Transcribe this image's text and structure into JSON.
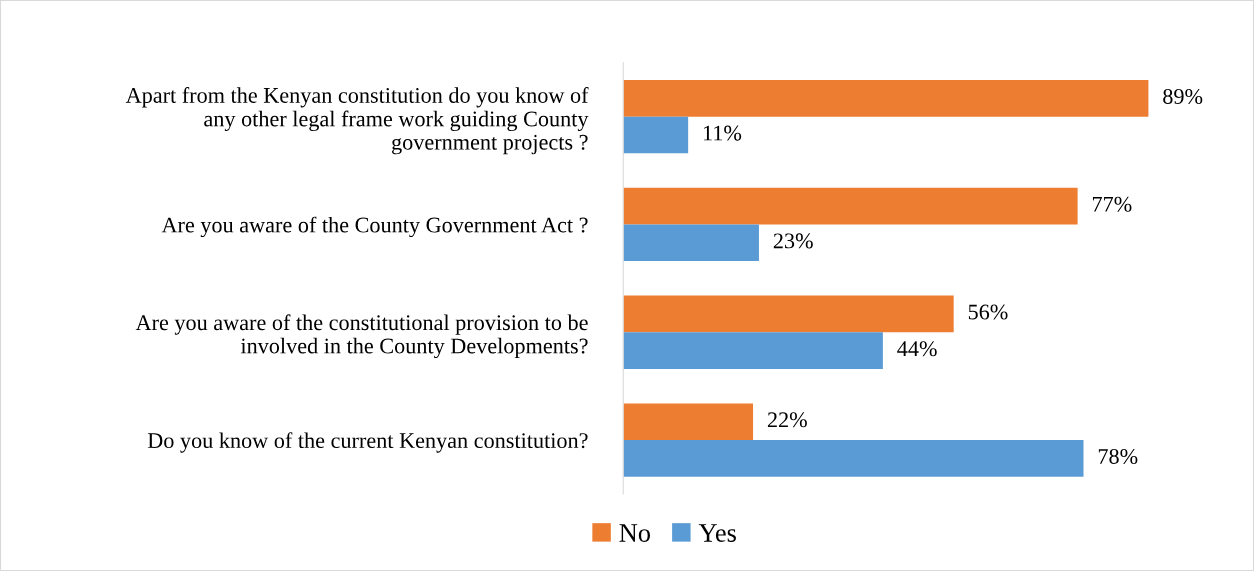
{
  "chart_data": {
    "type": "bar",
    "orientation": "horizontal",
    "categories": [
      "Apart from the Kenyan constitution do you know of\nany other legal frame work guiding County\ngovernment projects ?",
      "Are you aware of the County Government Act ?",
      "Are you aware of the constitutional provision to be\ninvolved in the County Developments?",
      "Do you know of the current Kenyan constitution?"
    ],
    "series": [
      {
        "name": "No",
        "color": "#ed7d31",
        "values": [
          89,
          77,
          56,
          22
        ],
        "value_labels": [
          "89%",
          "77%",
          "56%",
          "22%"
        ]
      },
      {
        "name": "Yes",
        "color": "#5b9bd5",
        "values": [
          11,
          23,
          44,
          78
        ],
        "value_labels": [
          "11%",
          "23%",
          "44%",
          "78%"
        ]
      }
    ],
    "legend": "bottom"
  }
}
